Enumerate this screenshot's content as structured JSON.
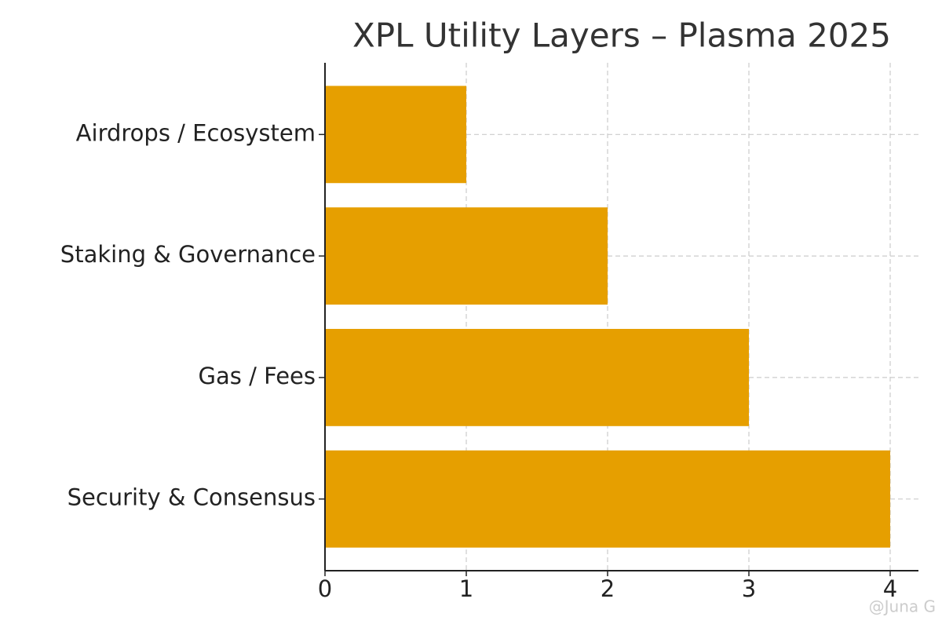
{
  "chart_data": {
    "type": "barh",
    "title": "XPL Utility Layers – Plasma 2025",
    "categories": [
      "Airdrops / Ecosystem",
      "Staking & Governance",
      "Gas / Fees",
      "Security & Consensus"
    ],
    "values": [
      1,
      2,
      3,
      4
    ],
    "color": "#e69f00",
    "xlim": [
      0,
      4.2
    ],
    "xticks": [
      0,
      1,
      2,
      3,
      4
    ],
    "grid": true
  },
  "watermark": "@Juna G"
}
